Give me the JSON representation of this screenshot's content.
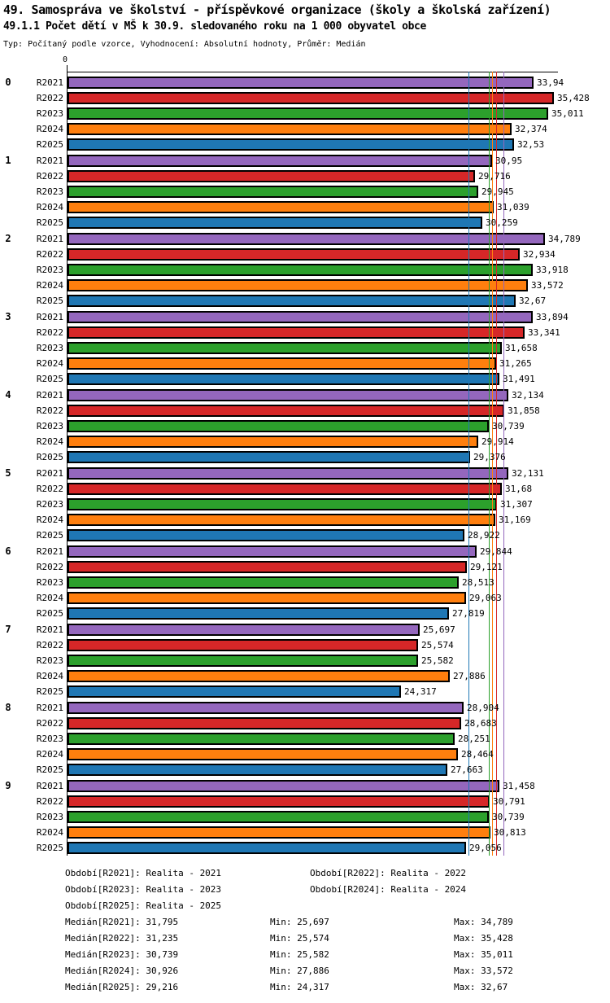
{
  "header": {
    "title": "49. Samospráva ve školství - příspěvkové organizace (školy a školská zařízení)",
    "subtitle": "49.1.1 Počet dětí v MŠ k 30.9. sledovaného roku na 1 000 obyvatel obce",
    "meta": "Typ: Počítaný podle vzorce, Vyhodnocení: Absolutní hodnoty, Průměr: Medián"
  },
  "chart_data": {
    "type": "bar",
    "orientation": "horizontal",
    "axis_origin_label": "0",
    "xlim": [
      0,
      39.5
    ],
    "grid": false,
    "categories": [
      "0",
      "1",
      "2",
      "3",
      "4",
      "5",
      "6",
      "7",
      "8",
      "9"
    ],
    "series_labels": [
      "R2021",
      "R2022",
      "R2023",
      "R2024",
      "R2025"
    ],
    "series_colors": [
      "#9467BD",
      "#D62728",
      "#2CA02C",
      "#FF7F0E",
      "#1F77B4"
    ],
    "groups": [
      {
        "category": "0",
        "values": [
          33.94,
          35.428,
          35.011,
          32.374,
          32.53
        ]
      },
      {
        "category": "1",
        "values": [
          30.95,
          29.716,
          29.945,
          31.039,
          30.259
        ]
      },
      {
        "category": "2",
        "values": [
          34.789,
          32.934,
          33.918,
          33.572,
          32.67
        ]
      },
      {
        "category": "3",
        "values": [
          33.894,
          33.341,
          31.658,
          31.265,
          31.491
        ]
      },
      {
        "category": "4",
        "values": [
          32.134,
          31.858,
          30.739,
          29.914,
          29.376
        ]
      },
      {
        "category": "5",
        "values": [
          32.131,
          31.68,
          31.307,
          31.169,
          28.922
        ]
      },
      {
        "category": "6",
        "values": [
          29.844,
          29.121,
          28.513,
          29.063,
          27.819
        ]
      },
      {
        "category": "7",
        "values": [
          25.697,
          25.574,
          25.582,
          27.886,
          24.317
        ]
      },
      {
        "category": "8",
        "values": [
          28.904,
          28.683,
          28.251,
          28.464,
          27.663
        ]
      },
      {
        "category": "9",
        "values": [
          31.458,
          30.791,
          30.739,
          30.813,
          29.056
        ]
      }
    ],
    "median_lines": [
      {
        "label": "R2021",
        "value": 31.795,
        "color": "#9467BD"
      },
      {
        "label": "R2022",
        "value": 31.235,
        "color": "#D62728"
      },
      {
        "label": "R2023",
        "value": 30.739,
        "color": "#2CA02C"
      },
      {
        "label": "R2024",
        "value": 30.926,
        "color": "#FF7F0E"
      },
      {
        "label": "R2025",
        "value": 29.216,
        "color": "#1F77B4"
      }
    ]
  },
  "legend": {
    "periods": [
      {
        "col1": "Období[R2021]: Realita - 2021",
        "col2": "Období[R2022]: Realita - 2022"
      },
      {
        "col1": "Období[R2023]: Realita - 2023",
        "col2": "Období[R2024]: Realita - 2024"
      },
      {
        "col1": "Období[R2025]: Realita - 2025",
        "col2": ""
      }
    ]
  },
  "stats": [
    {
      "median": "Medián[R2021]: 31,795",
      "min": "Min: 25,697",
      "max": "Max: 34,789"
    },
    {
      "median": "Medián[R2022]: 31,235",
      "min": "Min: 25,574",
      "max": "Max: 35,428"
    },
    {
      "median": "Medián[R2023]: 30,739",
      "min": "Min: 25,582",
      "max": "Max: 35,011"
    },
    {
      "median": "Medián[R2024]: 30,926",
      "min": "Min: 27,886",
      "max": "Max: 33,572"
    },
    {
      "median": "Medián[R2025]: 29,216",
      "min": "Min: 24,317",
      "max": "Max: 32,67"
    }
  ]
}
